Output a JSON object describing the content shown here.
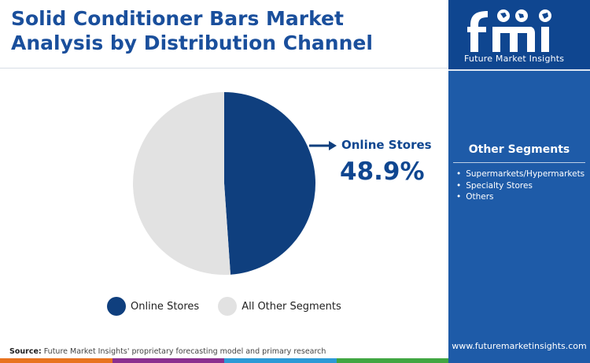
{
  "header": {
    "title_line1": "Solid Conditioner Bars Market",
    "title_line2": "Analysis by Distribution Channel"
  },
  "chart_data": {
    "type": "pie",
    "title": "Solid Conditioner Bars Market Analysis by Distribution Channel",
    "slices": [
      {
        "label": "Online Stores",
        "value": 48.9,
        "color": "#0f3f7e"
      },
      {
        "label": "All Other Segments",
        "value": 51.1,
        "color": "#e2e2e2"
      }
    ],
    "annotation": {
      "label": "Online Stores",
      "value_text": "48.9%"
    },
    "legend": {
      "position": "bottom",
      "items": [
        "Online Stores",
        "All Other Segments"
      ]
    }
  },
  "sidebar": {
    "logo_text": "Future Market Insights",
    "other_segments_heading": "Other Segments",
    "other_segments": [
      "Supermarkets/Hypermarkets",
      "Specialty Stores",
      "Others"
    ],
    "website": "www.futuremarketinsights.com"
  },
  "footer": {
    "source_label": "Source:",
    "source_text": "Future Market Insights' proprietary forecasting model and primary research"
  },
  "colors": {
    "title": "#1a4f9c",
    "sidebar_bg": "#1e5ba8",
    "sidebar_top": "#0f4690",
    "bottom_bar": [
      "#e8731f",
      "#8a2f8f",
      "#2c9ad6",
      "#41a642"
    ]
  }
}
